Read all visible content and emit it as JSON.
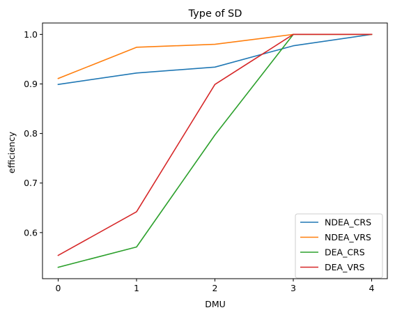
{
  "chart_data": {
    "type": "line",
    "title": "Type of SD",
    "xlabel": "DMU",
    "ylabel": "efficiency",
    "x": [
      0,
      1,
      2,
      3,
      4
    ],
    "x_ticks": [
      "0",
      "1",
      "2",
      "3",
      "4"
    ],
    "y_ticks": [
      "0.6",
      "0.7",
      "0.8",
      "0.9",
      "1.0"
    ],
    "xlim": [
      -0.2,
      4.2
    ],
    "ylim": [
      0.507,
      1.023
    ],
    "grid": false,
    "legend_position": "lower-right",
    "series": [
      {
        "name": "NDEA_CRS",
        "color": "#1f77b4",
        "values": [
          0.899,
          0.922,
          0.934,
          0.977,
          1.0
        ]
      },
      {
        "name": "NDEA_VRS",
        "color": "#ff7f0e",
        "values": [
          0.911,
          0.974,
          0.98,
          1.0,
          1.0
        ]
      },
      {
        "name": "DEA_CRS",
        "color": "#2ca02c",
        "values": [
          0.53,
          0.571,
          0.797,
          1.0,
          1.0
        ]
      },
      {
        "name": "DEA_VRS",
        "color": "#d62728",
        "values": [
          0.554,
          0.642,
          0.899,
          1.0,
          1.0
        ]
      }
    ]
  }
}
